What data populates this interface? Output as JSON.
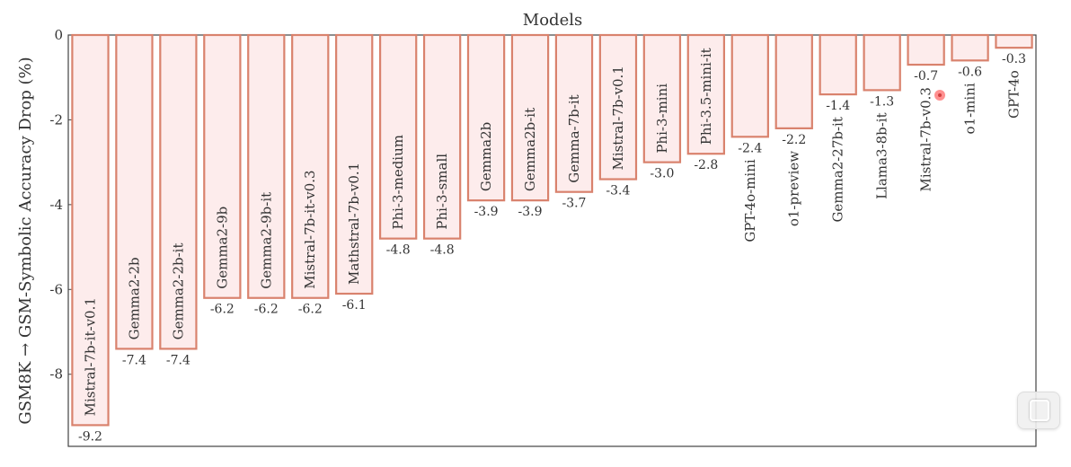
{
  "chart_data": {
    "type": "bar",
    "title": "Models",
    "ylabel": "GSM8K → GSM-Symbolic Accuracy Drop (%)",
    "xlabel": "",
    "ylim": [
      -9.7,
      0
    ],
    "yticks": [
      0,
      -2,
      -4,
      -6,
      -8
    ],
    "grid": false,
    "legend": "none",
    "bar_fill": "#fdecec",
    "bar_edge": "#d9826d",
    "categories": [
      "Mistral-7b-it-v0.1",
      "Gemma2-2b",
      "Gemma2-2b-it",
      "Gemma2-9b",
      "Gemma2-9b-it",
      "Mistral-7b-it-v0.3",
      "Mathstral-7b-v0.1",
      "Phi-3-medium",
      "Phi-3-small",
      "Gemma2b",
      "Gemma2b-it",
      "Gemma-7b-it",
      "Mistral-7b-v0.1",
      "Phi-3-mini",
      "Phi-3.5-mini-it",
      "GPT-4o-mini",
      "o1-preview",
      "Gemma2-27b-it",
      "Llama3-8b-it",
      "Mistral-7b-v0.3",
      "o1-mini",
      "GPT-4o"
    ],
    "values": [
      -9.2,
      -7.4,
      -7.4,
      -6.2,
      -6.2,
      -6.2,
      -6.1,
      -4.8,
      -4.8,
      -3.9,
      -3.9,
      -3.7,
      -3.4,
      -3.0,
      -2.8,
      -2.4,
      -2.2,
      -1.4,
      -1.3,
      -0.7,
      -0.6,
      -0.3
    ],
    "value_labels": [
      "-9.2",
      "-7.4",
      "-7.4",
      "-6.2",
      "-6.2",
      "-6.2",
      "-6.1",
      "-4.8",
      "-4.8",
      "-3.9",
      "-3.9",
      "-3.7",
      "-3.4",
      "-3.0",
      "-2.8",
      "-2.4",
      "-2.2",
      "-1.4",
      "-1.3",
      "-0.7",
      "-0.6",
      "-0.3"
    ]
  }
}
